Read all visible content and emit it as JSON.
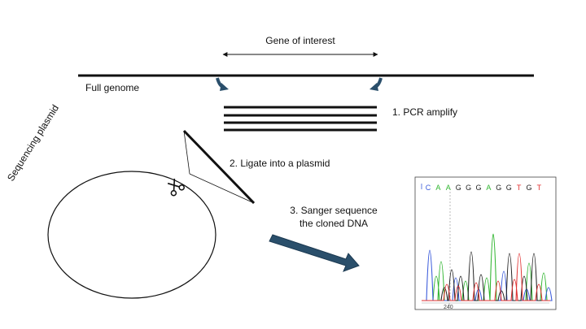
{
  "labels": {
    "gene_of_interest": "Gene of interest",
    "full_genome": "Full genome",
    "step1": "1. PCR amplify",
    "step2": "2.  Ligate into a plasmid",
    "step3_line1": "3. Sanger sequence",
    "step3_line2": "the cloned DNA",
    "plasmid": "Sequencing plasmid"
  },
  "chromatogram": {
    "bases": [
      "C",
      "A",
      "A",
      "G",
      "G",
      "G",
      "A",
      "G",
      "G",
      "T",
      "G",
      "T"
    ],
    "position_label": "240",
    "base_colors": {
      "A": "#2fb52f",
      "C": "#3b5bdb",
      "G": "#222222",
      "T": "#e03131"
    }
  },
  "icons": [
    "scissors-icon"
  ],
  "colors": {
    "arrow": "#2a4f6b"
  }
}
